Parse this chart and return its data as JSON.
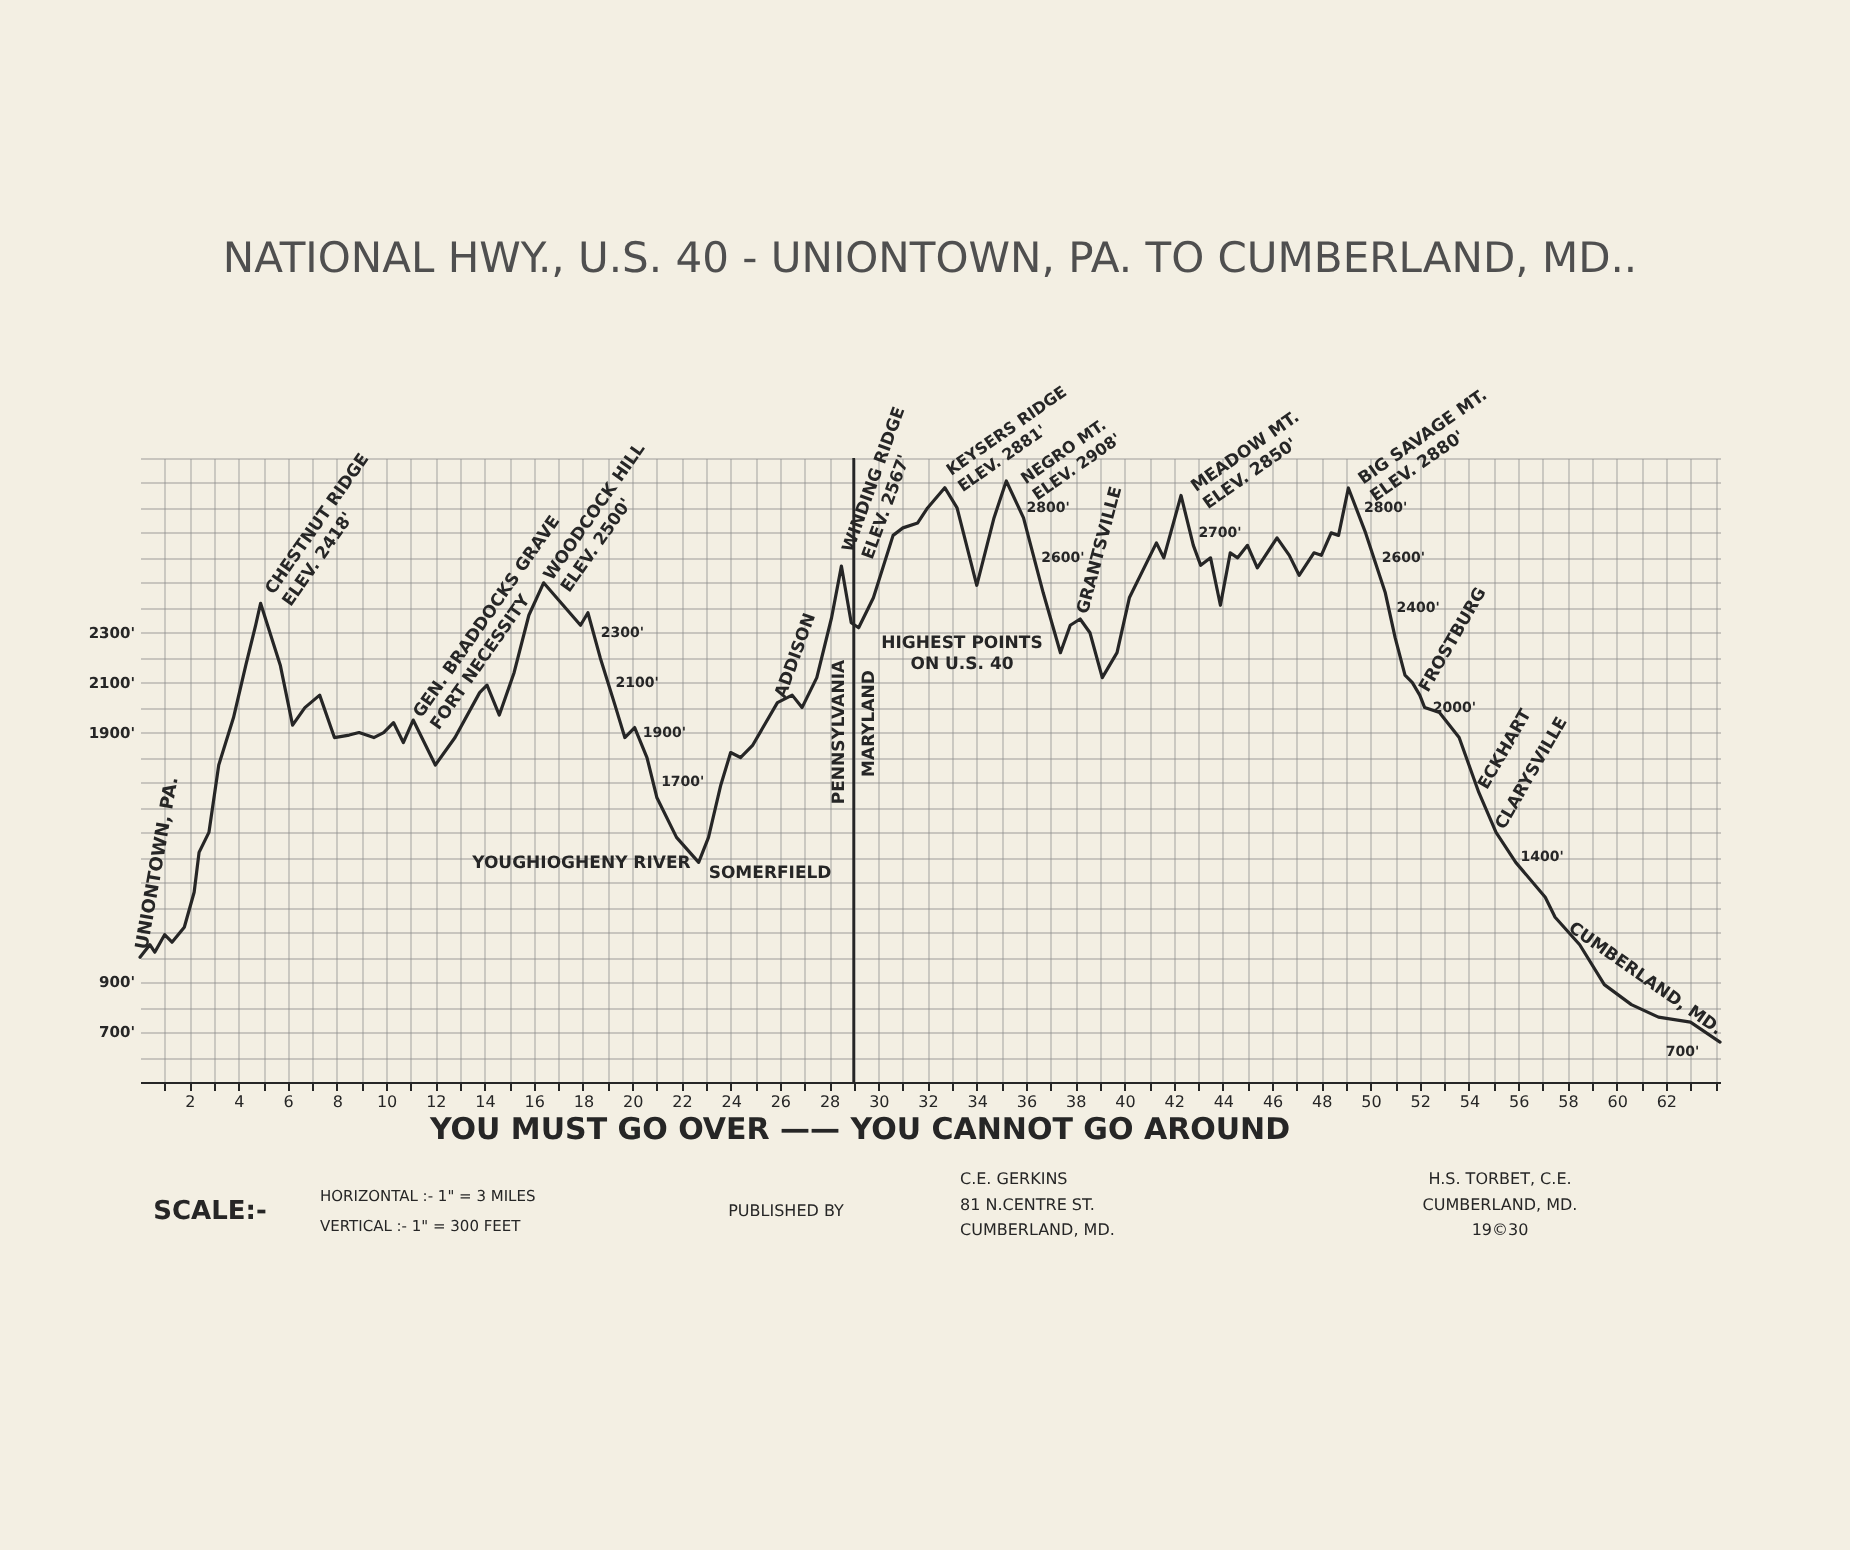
{
  "chart_data": {
    "type": "line",
    "title": "NATIONAL HWY., U.S. 40 - UNIONTOWN, PA. TO CUMBERLAND, MD..",
    "x": [
      0,
      0.4,
      0.6,
      1.0,
      1.3,
      1.8,
      2.2,
      2.4,
      2.8,
      3.2,
      3.8,
      4.3,
      4.7,
      4.9,
      5.7,
      6.2,
      6.7,
      7.3,
      7.9,
      8.5,
      8.9,
      9.5,
      9.9,
      10.3,
      10.7,
      11.1,
      12.0,
      12.8,
      13.8,
      14.1,
      14.6,
      15.2,
      15.8,
      16.4,
      17.9,
      18.2,
      18.7,
      19.3,
      19.7,
      20.1,
      20.6,
      21.0,
      21.8,
      22.7,
      23.1,
      23.6,
      24.0,
      24.4,
      24.9,
      25.9,
      26.5,
      26.9,
      27.5,
      28.1,
      28.5,
      28.9,
      29.2,
      29.8,
      30.6,
      31.0,
      31.6,
      32.0,
      32.7,
      33.2,
      34.0,
      34.7,
      35.2,
      35.9,
      36.7,
      37.4,
      37.8,
      38.2,
      38.6,
      39.1,
      39.7,
      40.2,
      41.3,
      41.6,
      42.3,
      42.8,
      43.1,
      43.5,
      43.9,
      44.3,
      44.6,
      45.0,
      45.4,
      46.2,
      46.7,
      47.1,
      47.7,
      48.0,
      48.4,
      48.7,
      49.1,
      49.8,
      50.6,
      51.0,
      51.4,
      51.7,
      52.0,
      52.2,
      52.8,
      53.6,
      54.4,
      55.1,
      55.9,
      57.1,
      57.5,
      58.5,
      59.5,
      60.6,
      61.7,
      63.0,
      64.2
    ],
    "series": [
      {
        "color": "#262626",
        "line_style": "solid",
        "values": [
          1000,
          1050,
          1020,
          1090,
          1060,
          1120,
          1260,
          1420,
          1500,
          1770,
          1960,
          2170,
          2330,
          2418,
          2170,
          1930,
          2000,
          2050,
          1880,
          1890,
          1900,
          1880,
          1900,
          1940,
          1860,
          1950,
          1770,
          1880,
          2060,
          2090,
          1970,
          2140,
          2370,
          2500,
          2330,
          2380,
          2200,
          2010,
          1880,
          1920,
          1800,
          1640,
          1480,
          1380,
          1480,
          1690,
          1820,
          1800,
          1850,
          2020,
          2050,
          2000,
          2120,
          2360,
          2567,
          2340,
          2320,
          2440,
          2690,
          2720,
          2740,
          2800,
          2881,
          2800,
          2490,
          2760,
          2908,
          2760,
          2460,
          2220,
          2330,
          2355,
          2300,
          2120,
          2220,
          2440,
          2660,
          2600,
          2850,
          2650,
          2570,
          2600,
          2410,
          2620,
          2600,
          2650,
          2560,
          2680,
          2610,
          2530,
          2620,
          2610,
          2700,
          2690,
          2880,
          2700,
          2460,
          2280,
          2130,
          2100,
          2050,
          2000,
          1980,
          1880,
          1660,
          1500,
          1380,
          1240,
          1160,
          1050,
          890,
          810,
          760,
          740,
          660
        ]
      }
    ],
    "xlim": [
      0,
      64.2
    ],
    "ylim": [
      500,
      3000
    ],
    "xticks": [
      {
        "value": 1,
        "label": null
      },
      2,
      {
        "value": 3,
        "label": null
      },
      4,
      {
        "value": 5,
        "label": null
      },
      6,
      {
        "value": 7,
        "label": null
      },
      8,
      {
        "value": 9,
        "label": null
      },
      10,
      {
        "value": 11,
        "label": null
      },
      12,
      {
        "value": 13,
        "label": null
      },
      14,
      {
        "value": 15,
        "label": null
      },
      16,
      {
        "value": 17,
        "label": null
      },
      18,
      {
        "value": 19,
        "label": null
      },
      20,
      {
        "value": 21,
        "label": null
      },
      22,
      {
        "value": 23,
        "label": null
      },
      24,
      {
        "value": 25,
        "label": null
      },
      26,
      {
        "value": 27,
        "label": null
      },
      28,
      {
        "value": 29,
        "label": null
      },
      30,
      {
        "value": 31,
        "label": null
      },
      32,
      {
        "value": 33,
        "label": null
      },
      34,
      {
        "value": 35,
        "label": null
      },
      36,
      {
        "value": 37,
        "label": null
      },
      38,
      {
        "value": 39,
        "label": null
      },
      40,
      {
        "value": 41,
        "label": null
      },
      42,
      {
        "value": 43,
        "label": null
      },
      44,
      {
        "value": 45,
        "label": null
      },
      46,
      {
        "value": 47,
        "label": null
      },
      48,
      {
        "value": 49,
        "label": null
      },
      50,
      {
        "value": 51,
        "label": null
      },
      52,
      {
        "value": 53,
        "label": null
      },
      54,
      {
        "value": 55,
        "label": null
      },
      56,
      {
        "value": 57,
        "label": null
      },
      58,
      {
        "value": 59,
        "label": null
      },
      60,
      {
        "value": 61,
        "label": null
      },
      62,
      {
        "value": 63,
        "label": null
      },
      {
        "value": 64,
        "label": null
      }
    ],
    "yticks": [
      {
        "value": 500,
        "label": null
      },
      {
        "value": 600,
        "label": null
      },
      {
        "value": 700,
        "label": "700'"
      },
      {
        "value": 800,
        "label": null
      },
      {
        "value": 900,
        "label": "900'"
      },
      {
        "value": 1000,
        "label": null
      },
      {
        "value": 1100,
        "label": null
      },
      {
        "value": 1200,
        "label": null
      },
      {
        "value": 1300,
        "label": null
      },
      {
        "value": 1400,
        "label": null
      },
      {
        "value": 1500,
        "label": null
      },
      {
        "value": 1600,
        "label": null
      },
      {
        "value": 1700,
        "label": null
      },
      {
        "value": 1800,
        "label": null
      },
      {
        "value": 1900,
        "label": "1900'"
      },
      {
        "value": 2000,
        "label": null
      },
      {
        "value": 2100,
        "label": "2100'"
      },
      {
        "value": 2200,
        "label": null
      },
      {
        "value": 2300,
        "label": "2300'"
      },
      {
        "value": 2400,
        "label": null
      },
      {
        "value": 2500,
        "label": null
      },
      {
        "value": 2600,
        "label": null
      },
      {
        "value": 2700,
        "label": null
      },
      {
        "value": 2800,
        "label": null
      },
      {
        "value": 2900,
        "label": null
      },
      {
        "value": 3000,
        "label": null
      }
    ],
    "grid": true,
    "ref_lines": [
      {
        "axis": "x",
        "value": 29,
        "color": "#262626"
      }
    ],
    "annotations": [
      {
        "text": "UNIONTOWN, PA.",
        "x": 0,
        "y": 1000
      },
      {
        "text": "CHESTNUT RIDGE\nELEV. 2418'",
        "x": 4.9,
        "y": 2418
      },
      {
        "text": "GEN. BRADDOCKS GRAVE\nFORT NECESSITY",
        "x": 11.1,
        "y": 1950
      },
      {
        "text": "WOODCOCK HILL\nELEV. 2500'",
        "x": 16.4,
        "y": 2500
      },
      {
        "text": "YOUGHIOGHENY RIVER",
        "x": 22.7,
        "y": 1380
      },
      {
        "text": "SOMERFIELD",
        "x": 22.7,
        "y": 1380
      },
      {
        "text": "ADDISON",
        "x": 25.9,
        "y": 2020
      },
      {
        "text": "WINDING RIDGE\nELEV. 2567'",
        "x": 28.5,
        "y": 2567
      },
      {
        "text": "KEYSERS RIDGE\nELEV. 2881'",
        "x": 32.7,
        "y": 2881
      },
      {
        "text": "NEGRO MT.\nELEV. 2908'",
        "x": 35.2,
        "y": 2908
      },
      {
        "text": "GRANTSVILLE",
        "x": 38.2,
        "y": 2355
      },
      {
        "text": "MEADOW MT.\nELEV. 2850'",
        "x": 42.3,
        "y": 2850
      },
      {
        "text": "BIG SAVAGE MT.\nELEV. 2880'",
        "x": 49.1,
        "y": 2880
      },
      {
        "text": "FROSTBURG",
        "x": 52.0,
        "y": 2050
      },
      {
        "text": "ECKHART",
        "x": 54.4,
        "y": 1660
      },
      {
        "text": "CLARYSVILLE",
        "x": 55.1,
        "y": 1500
      },
      {
        "text": "CUMBERLAND, MD.",
        "x": 64.2,
        "y": 660
      },
      {
        "text": "2300'",
        "x": 18.4,
        "y": 2300
      },
      {
        "text": "2100'",
        "x": 19.0,
        "y": 2100
      },
      {
        "text": "1900'",
        "x": 20.1,
        "y": 1900
      },
      {
        "text": "1700'",
        "x": 20.85,
        "y": 1700
      },
      {
        "text": "2800'",
        "x": 35.7,
        "y": 2800
      },
      {
        "text": "2600'",
        "x": 36.3,
        "y": 2600
      },
      {
        "text": "2700'",
        "x": 42.68,
        "y": 2700
      },
      {
        "text": "2800'",
        "x": 49.41,
        "y": 2800
      },
      {
        "text": "2600'",
        "x": 50.13,
        "y": 2600
      },
      {
        "text": "2400'",
        "x": 50.73,
        "y": 2400
      },
      {
        "text": "2000'",
        "x": 52.2,
        "y": 2000
      },
      {
        "text": "1400'",
        "x": 55.77,
        "y": 1400
      },
      {
        "text": "700'",
        "x": 63.6,
        "y": 700
      },
      "PENNSYLVANIA",
      "MARYLAND",
      "HIGHEST POINTS\nON U.S. 40",
      "YOU MUST GO OVER —— YOU CANNOT GO AROUND",
      "SCALE:-",
      "HORIZONTAL :- 1\" = 3 MILES",
      "VERTICAL :- 1\" = 300 FEET",
      "PUBLISHED BY",
      "C.E. GERKINS\n81 N.CENTRE ST.\nCUMBERLAND, MD.",
      "H.S. TORBET, C.E.\nCUMBERLAND, MD.\n19©30"
    ]
  }
}
